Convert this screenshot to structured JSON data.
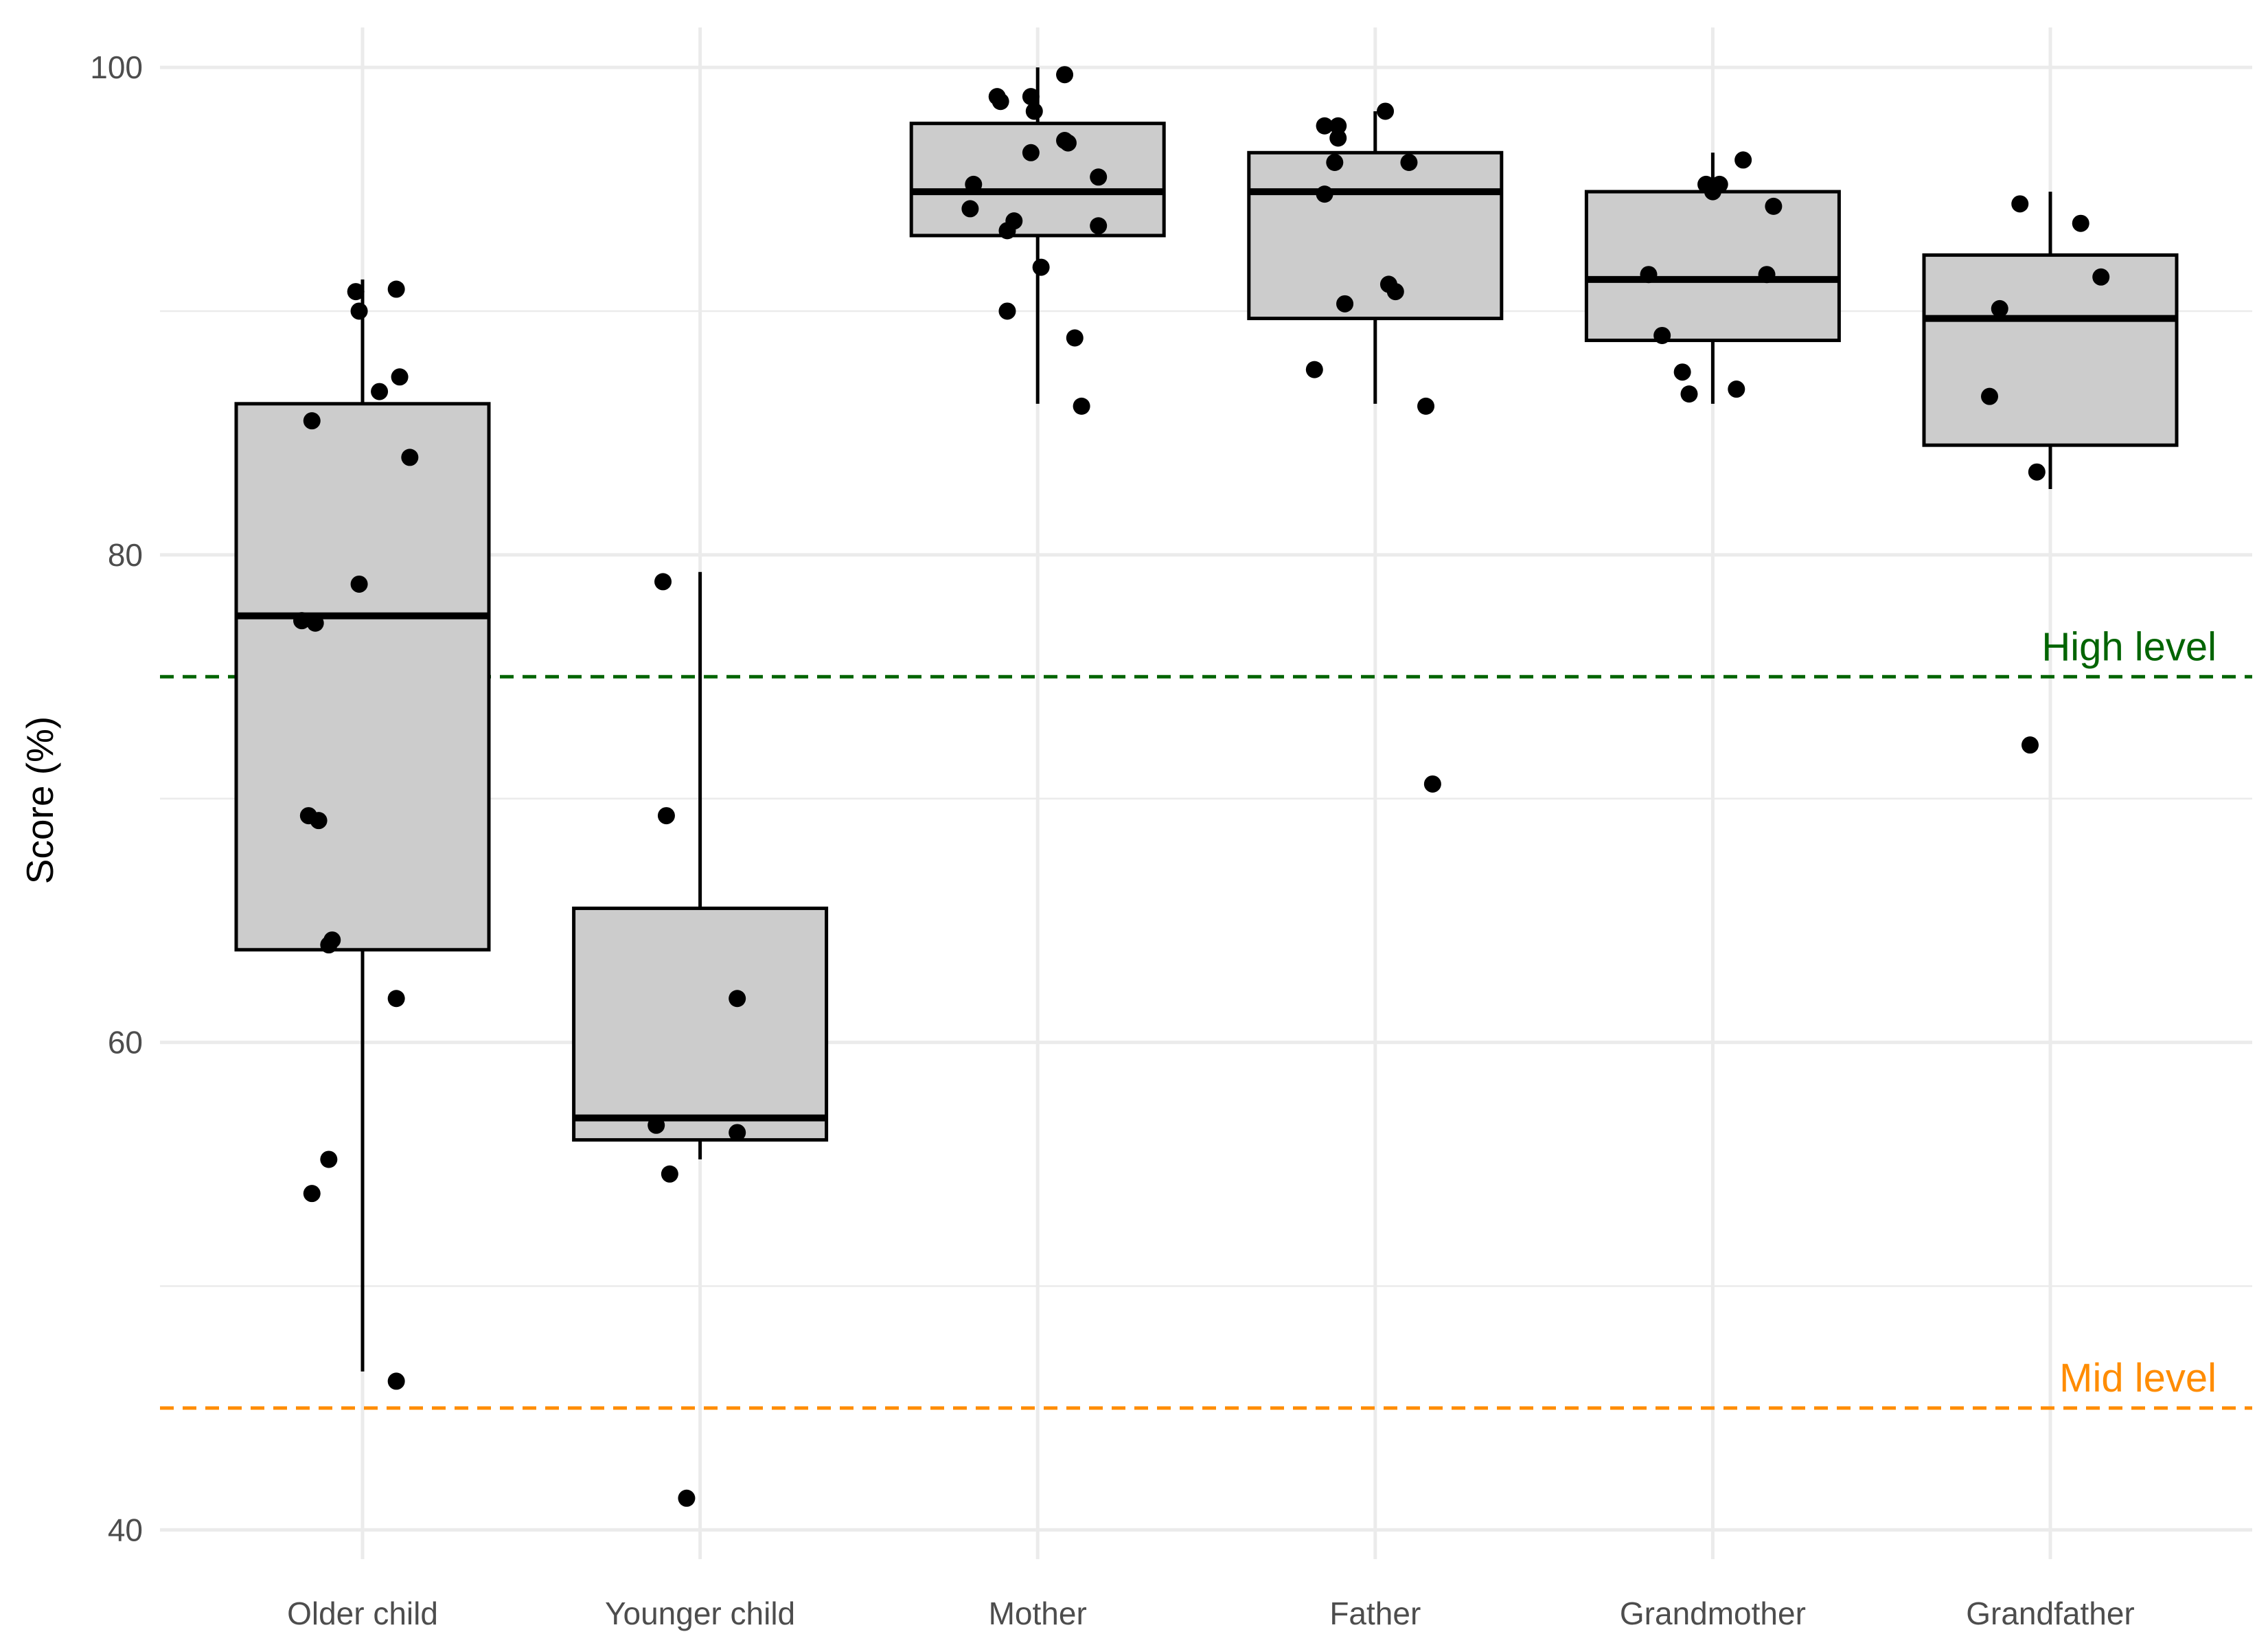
{
  "chart_data": {
    "type": "boxplot",
    "title": "",
    "xlabel": "",
    "ylabel": "Score (%)",
    "ylim": [
      38.8,
      102.2
    ],
    "yticks": [
      40,
      60,
      80,
      100
    ],
    "categories": [
      "Older child",
      "Younger child",
      "Mother",
      "Father",
      "Grandmother",
      "Grandfather"
    ],
    "boxes": [
      {
        "category": "Older child",
        "whisker_low": 46.5,
        "q1": 63.8,
        "median": 77.5,
        "q3": 86.2,
        "whisker_high": 91.3
      },
      {
        "category": "Younger child",
        "whisker_low": 55.2,
        "q1": 56.0,
        "median": 56.9,
        "q3": 65.5,
        "whisker_high": 79.3
      },
      {
        "category": "Mother",
        "whisker_low": 86.2,
        "q1": 93.1,
        "median": 94.9,
        "q3": 97.7,
        "whisker_high": 100.0
      },
      {
        "category": "Father",
        "whisker_low": 86.2,
        "q1": 89.7,
        "median": 94.9,
        "q3": 96.5,
        "whisker_high": 98.2
      },
      {
        "category": "Grandmother",
        "whisker_low": 86.2,
        "q1": 88.8,
        "median": 91.3,
        "q3": 94.9,
        "whisker_high": 96.5
      },
      {
        "category": "Grandfather",
        "whisker_low": 82.7,
        "q1": 84.5,
        "median": 89.7,
        "q3": 92.3,
        "whisker_high": 94.9
      }
    ],
    "points": [
      {
        "category": "Older child",
        "offset": -0.02,
        "value": 90.8
      },
      {
        "category": "Older child",
        "offset": 0.1,
        "value": 90.9
      },
      {
        "category": "Older child",
        "offset": -0.01,
        "value": 90.0
      },
      {
        "category": "Older child",
        "offset": 0.11,
        "value": 87.3
      },
      {
        "category": "Older child",
        "offset": 0.05,
        "value": 86.7
      },
      {
        "category": "Older child",
        "offset": -0.15,
        "value": 85.5
      },
      {
        "category": "Older child",
        "offset": 0.14,
        "value": 84.0
      },
      {
        "category": "Older child",
        "offset": -0.01,
        "value": 78.8
      },
      {
        "category": "Older child",
        "offset": -0.18,
        "value": 77.3
      },
      {
        "category": "Older child",
        "offset": -0.14,
        "value": 77.2
      },
      {
        "category": "Older child",
        "offset": -0.16,
        "value": 69.3
      },
      {
        "category": "Older child",
        "offset": -0.13,
        "value": 69.1
      },
      {
        "category": "Older child",
        "offset": -0.09,
        "value": 64.2
      },
      {
        "category": "Older child",
        "offset": -0.1,
        "value": 64.0
      },
      {
        "category": "Older child",
        "offset": 0.1,
        "value": 61.8
      },
      {
        "category": "Older child",
        "offset": -0.1,
        "value": 55.2
      },
      {
        "category": "Older child",
        "offset": -0.15,
        "value": 53.8
      },
      {
        "category": "Older child",
        "offset": 0.1,
        "value": 46.1
      },
      {
        "category": "Younger child",
        "offset": -0.11,
        "value": 78.9
      },
      {
        "category": "Younger child",
        "offset": -0.1,
        "value": 69.3
      },
      {
        "category": "Younger child",
        "offset": 0.11,
        "value": 61.8
      },
      {
        "category": "Younger child",
        "offset": -0.13,
        "value": 56.6
      },
      {
        "category": "Younger child",
        "offset": 0.11,
        "value": 56.3
      },
      {
        "category": "Younger child",
        "offset": -0.09,
        "value": 54.6
      },
      {
        "category": "Younger child",
        "offset": -0.04,
        "value": 41.3
      },
      {
        "category": "Mother",
        "offset": 0.08,
        "value": 99.7
      },
      {
        "category": "Mother",
        "offset": -0.12,
        "value": 98.8
      },
      {
        "category": "Mother",
        "offset": -0.02,
        "value": 98.8
      },
      {
        "category": "Mother",
        "offset": -0.11,
        "value": 98.6
      },
      {
        "category": "Mother",
        "offset": -0.01,
        "value": 98.2
      },
      {
        "category": "Mother",
        "offset": 0.08,
        "value": 97.0
      },
      {
        "category": "Mother",
        "offset": 0.09,
        "value": 96.9
      },
      {
        "category": "Mother",
        "offset": -0.02,
        "value": 96.5
      },
      {
        "category": "Mother",
        "offset": 0.18,
        "value": 95.5
      },
      {
        "category": "Mother",
        "offset": -0.19,
        "value": 95.2
      },
      {
        "category": "Mother",
        "offset": -0.2,
        "value": 94.2
      },
      {
        "category": "Mother",
        "offset": -0.07,
        "value": 93.7
      },
      {
        "category": "Mother",
        "offset": 0.18,
        "value": 93.5
      },
      {
        "category": "Mother",
        "offset": -0.09,
        "value": 93.3
      },
      {
        "category": "Mother",
        "offset": 0.01,
        "value": 91.8
      },
      {
        "category": "Mother",
        "offset": -0.09,
        "value": 90.0
      },
      {
        "category": "Mother",
        "offset": 0.11,
        "value": 88.9
      },
      {
        "category": "Mother",
        "offset": 0.13,
        "value": 86.1
      },
      {
        "category": "Father",
        "offset": 0.03,
        "value": 98.2
      },
      {
        "category": "Father",
        "offset": -0.15,
        "value": 97.6
      },
      {
        "category": "Father",
        "offset": -0.11,
        "value": 97.6
      },
      {
        "category": "Father",
        "offset": -0.11,
        "value": 97.1
      },
      {
        "category": "Father",
        "offset": -0.12,
        "value": 96.1
      },
      {
        "category": "Father",
        "offset": 0.1,
        "value": 96.1
      },
      {
        "category": "Father",
        "offset": -0.15,
        "value": 94.8
      },
      {
        "category": "Father",
        "offset": 0.04,
        "value": 91.1
      },
      {
        "category": "Father",
        "offset": 0.06,
        "value": 90.8
      },
      {
        "category": "Father",
        "offset": -0.09,
        "value": 90.3
      },
      {
        "category": "Father",
        "offset": -0.18,
        "value": 87.6
      },
      {
        "category": "Father",
        "offset": 0.15,
        "value": 86.1
      },
      {
        "category": "Father",
        "offset": 0.17,
        "value": 70.6
      },
      {
        "category": "Grandmother",
        "offset": 0.09,
        "value": 96.2
      },
      {
        "category": "Grandmother",
        "offset": -0.02,
        "value": 95.2
      },
      {
        "category": "Grandmother",
        "offset": 0.02,
        "value": 95.2
      },
      {
        "category": "Grandmother",
        "offset": 0.0,
        "value": 94.9
      },
      {
        "category": "Grandmother",
        "offset": 0.18,
        "value": 94.3
      },
      {
        "category": "Grandmother",
        "offset": -0.19,
        "value": 91.5
      },
      {
        "category": "Grandmother",
        "offset": 0.16,
        "value": 91.5
      },
      {
        "category": "Grandmother",
        "offset": -0.15,
        "value": 89.0
      },
      {
        "category": "Grandmother",
        "offset": -0.09,
        "value": 87.5
      },
      {
        "category": "Grandmother",
        "offset": 0.07,
        "value": 86.8
      },
      {
        "category": "Grandmother",
        "offset": -0.07,
        "value": 86.6
      },
      {
        "category": "Grandfather",
        "offset": -0.09,
        "value": 94.4
      },
      {
        "category": "Grandfather",
        "offset": 0.09,
        "value": 93.6
      },
      {
        "category": "Grandfather",
        "offset": 0.15,
        "value": 91.4
      },
      {
        "category": "Grandfather",
        "offset": -0.15,
        "value": 90.1
      },
      {
        "category": "Grandfather",
        "offset": -0.18,
        "value": 86.5
      },
      {
        "category": "Grandfather",
        "offset": -0.04,
        "value": 83.4
      },
      {
        "category": "Grandfather",
        "offset": -0.06,
        "value": 72.2
      }
    ],
    "reference_lines": [
      {
        "label": "High level",
        "value": 75,
        "color": "#006400",
        "style": "dashed"
      },
      {
        "label": "Mid level",
        "value": 45,
        "color": "#FF8C00",
        "style": "dashed"
      }
    ],
    "box_fill": "#CCCCCC",
    "gridlines": true,
    "legend": "none"
  }
}
